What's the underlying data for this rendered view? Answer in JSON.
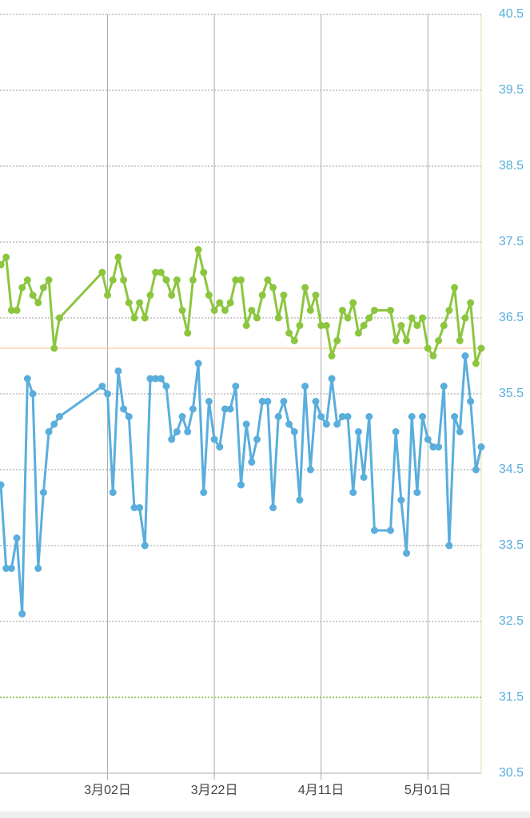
{
  "chart_data": {
    "type": "line",
    "x": [
      0,
      1,
      2,
      3,
      4,
      5,
      6,
      7,
      8,
      9,
      10,
      11,
      19,
      20,
      21,
      22,
      23,
      24,
      25,
      26,
      27,
      28,
      29,
      30,
      31,
      32,
      33,
      34,
      35,
      36,
      37,
      38,
      39,
      40,
      41,
      42,
      43,
      44,
      45,
      46,
      47,
      48,
      49,
      50,
      51,
      52,
      53,
      54,
      55,
      56,
      57,
      58,
      59,
      60,
      61,
      62,
      63,
      64,
      65,
      66,
      67,
      68,
      69,
      70,
      73,
      74,
      75,
      76,
      77,
      78,
      79,
      80,
      81,
      82,
      83,
      84,
      85,
      86,
      87,
      88,
      89,
      90
    ],
    "series": [
      {
        "color": "#8cc63f",
        "values": [
          37.2,
          37.3,
          36.6,
          36.6,
          36.9,
          37.0,
          36.8,
          36.7,
          36.9,
          37.0,
          36.1,
          36.5,
          37.1,
          36.8,
          37.0,
          37.3,
          37.0,
          36.7,
          36.5,
          36.7,
          36.5,
          36.8,
          37.1,
          37.1,
          37.0,
          36.8,
          37.0,
          36.6,
          36.3,
          37.0,
          37.4,
          37.1,
          36.8,
          36.6,
          36.7,
          36.6,
          36.7,
          37.0,
          37.0,
          36.4,
          36.6,
          36.5,
          36.8,
          37.0,
          36.9,
          36.5,
          36.8,
          36.3,
          36.2,
          36.4,
          36.9,
          36.6,
          36.8,
          36.4,
          36.4,
          36.0,
          36.2,
          36.6,
          36.5,
          36.7,
          36.3,
          36.4,
          36.5,
          36.6,
          36.6,
          36.2,
          36.4,
          36.2,
          36.5,
          36.4,
          36.5,
          36.1,
          36.0,
          36.2,
          36.4,
          36.6,
          36.9,
          36.2,
          36.5,
          36.7,
          35.9,
          36.1
        ]
      },
      {
        "color": "#5aaedc",
        "values": [
          34.3,
          33.2,
          33.2,
          33.6,
          32.6,
          35.7,
          35.5,
          33.2,
          34.2,
          35.0,
          35.1,
          35.2,
          35.6,
          35.5,
          34.2,
          35.8,
          35.3,
          35.2,
          34.0,
          34.0,
          33.5,
          35.7,
          35.7,
          35.7,
          35.6,
          34.9,
          35.0,
          35.2,
          35.0,
          35.3,
          35.9,
          34.2,
          35.4,
          34.9,
          34.8,
          35.3,
          35.3,
          35.6,
          34.3,
          35.1,
          34.6,
          34.9,
          35.4,
          35.4,
          34.0,
          35.2,
          35.4,
          35.1,
          35.0,
          34.1,
          35.6,
          34.5,
          35.4,
          35.2,
          35.1,
          35.7,
          35.1,
          35.2,
          35.2,
          34.2,
          35.0,
          34.4,
          35.2,
          33.7,
          33.7,
          35.0,
          34.1,
          33.4,
          35.2,
          34.2,
          35.2,
          34.9,
          34.8,
          34.8,
          35.6,
          33.5,
          35.2,
          35.0,
          36.0,
          35.4,
          34.5,
          34.8
        ]
      }
    ],
    "xlim": [
      0,
      90
    ],
    "xticks": [
      {
        "value": 20,
        "label": "3月02日"
      },
      {
        "value": 40,
        "label": "3月22日"
      },
      {
        "value": 60,
        "label": "4月11日"
      },
      {
        "value": 80,
        "label": "5月01日"
      }
    ],
    "ylim": [
      30.5,
      40.5
    ],
    "yticks": [
      30.5,
      31.5,
      32.5,
      33.5,
      34.5,
      35.5,
      36.5,
      37.5,
      38.5,
      39.5,
      40.5
    ],
    "y_axis_side": "right",
    "tick_label_color": "#5aaedc",
    "grid": true,
    "reference_lines": [
      {
        "value": 36.1,
        "color": "#f7c9a0",
        "style": "solid"
      },
      {
        "value": 31.5,
        "color": "#9ccc65",
        "style": "dotted"
      }
    ]
  }
}
